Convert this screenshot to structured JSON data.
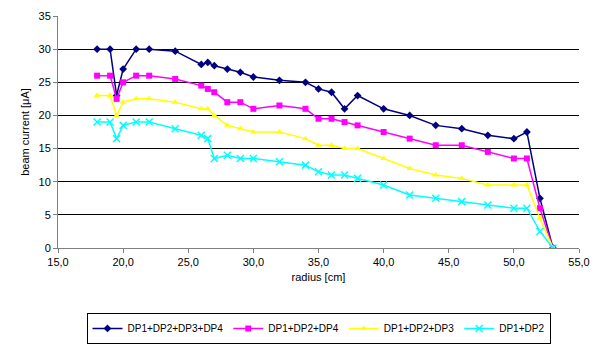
{
  "chart_data": {
    "type": "line",
    "x_label": "radius [cm]",
    "y_label": "beam current [μA]",
    "x": [
      18,
      19,
      19.5,
      20,
      21,
      22,
      24,
      26,
      26.5,
      27,
      28,
      29,
      30,
      32,
      34,
      35,
      36,
      37,
      38,
      40,
      42,
      44,
      46,
      48,
      50,
      51,
      52,
      53
    ],
    "series": [
      {
        "name": "DP1+DP2+DP3+DP4",
        "color": "#000080",
        "marker": "diamond",
        "values": [
          30,
          30,
          23,
          27,
          30,
          30,
          29.7,
          27.7,
          28,
          27.5,
          27,
          26.5,
          25.8,
          25.3,
          25,
          24,
          23.5,
          21,
          23,
          21,
          20,
          18.5,
          18,
          17,
          16.5,
          17.5,
          7.5,
          0
        ]
      },
      {
        "name": "DP1+DP2+DP4",
        "color": "#ff00ff",
        "marker": "square",
        "values": [
          26,
          26,
          22.5,
          25,
          26,
          26,
          25.5,
          24.5,
          24,
          23.5,
          22,
          22,
          21,
          21.5,
          21,
          19.5,
          19.5,
          19,
          18.5,
          17.5,
          16.5,
          15.5,
          15.5,
          14.5,
          13.5,
          13.5,
          6,
          0
        ]
      },
      {
        "name": "DP1+DP2+DP3",
        "color": "#ffff00",
        "marker": "triangle-up",
        "values": [
          23,
          23,
          20,
          22,
          22.5,
          22.5,
          22,
          21,
          21,
          20,
          18.5,
          18,
          17.5,
          17.5,
          16.5,
          15.5,
          15.5,
          15,
          15,
          13.5,
          12,
          11,
          10.5,
          9.5,
          9.5,
          9.5,
          4.5,
          0
        ]
      },
      {
        "name": "DP1+DP2",
        "color": "#00ffff",
        "marker": "x",
        "values": [
          19,
          19,
          16.5,
          18.5,
          19,
          19,
          18,
          17,
          16.5,
          13.5,
          14,
          13.5,
          13.5,
          13,
          12.5,
          11.5,
          11,
          11,
          10.5,
          9.5,
          8,
          7.5,
          7,
          6.5,
          6,
          6,
          2.5,
          0
        ]
      }
    ],
    "xlim": [
      15,
      55
    ],
    "xticks": [
      {
        "value": 15,
        "label": "15,0"
      },
      {
        "value": 20,
        "label": "20,0"
      },
      {
        "value": 25,
        "label": "25,0"
      },
      {
        "value": 30,
        "label": "30,0"
      },
      {
        "value": 35,
        "label": "35,0"
      },
      {
        "value": 40,
        "label": "40,0"
      },
      {
        "value": 45,
        "label": "45,0"
      },
      {
        "value": 50,
        "label": "50,0"
      },
      {
        "value": 55,
        "label": "55,0"
      }
    ],
    "ylim": [
      0,
      35
    ],
    "yticks": [
      0,
      5,
      10,
      15,
      20,
      25,
      30,
      35
    ],
    "grid": true,
    "legend": "bottom"
  }
}
